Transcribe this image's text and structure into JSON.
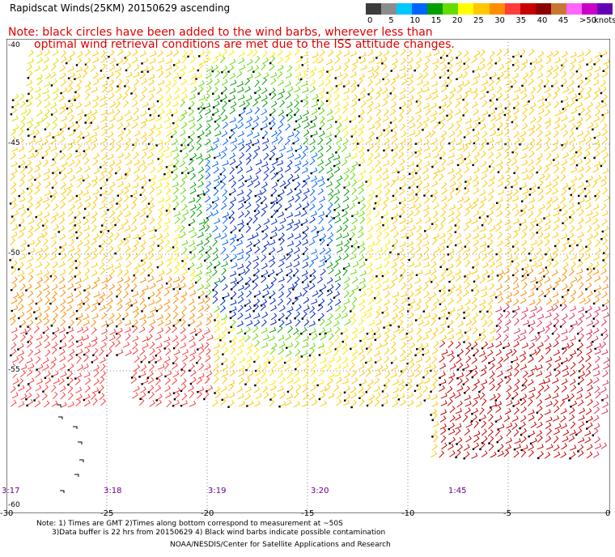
{
  "header": {
    "title": "Rapidscat Winds(25KM) 20150629 ascending",
    "note_line1": "Note: black circles have been added to the wind barbs, wherever less than",
    "note_line2": "optimal wind retrieval conditions are met due to the ISS attitude changes."
  },
  "legend": {
    "unit": "knots",
    "labels": [
      "0",
      "5",
      "10",
      "15",
      "20",
      "25",
      "30",
      "35",
      "40",
      "45",
      ">50"
    ],
    "colors": [
      "#3c3c3c",
      "#8c8c8c",
      "#00c8ff",
      "#0064ff",
      "#00a000",
      "#64dc00",
      "#ffff00",
      "#ffc800",
      "#ff8c00",
      "#ff3c3c",
      "#c80000",
      "#8c0000",
      "#c87832",
      "#ff64ff",
      "#c800c8",
      "#6400b4"
    ]
  },
  "map": {
    "longitude_labels": [
      "-30",
      "-25",
      "-20",
      "-15",
      "-10",
      "-5",
      "0"
    ],
    "latitude_labels": [
      "-40",
      "-45",
      "-50",
      "-55",
      "-60"
    ],
    "pass_times": [
      "3:17",
      "3:18",
      "3:19",
      "3:20",
      "1:45"
    ]
  },
  "footer": {
    "notes_line1": "Note: 1) Times are GMT 2)Times along bottom correspond to measurement at ~50S",
    "notes_line2": "3)Data buffer is 22 hrs from 20150629 4) Black wind barbs indicate possible contamination",
    "credit": "NOAA/NESDIS/Center for Satellite Applications and Research"
  }
}
